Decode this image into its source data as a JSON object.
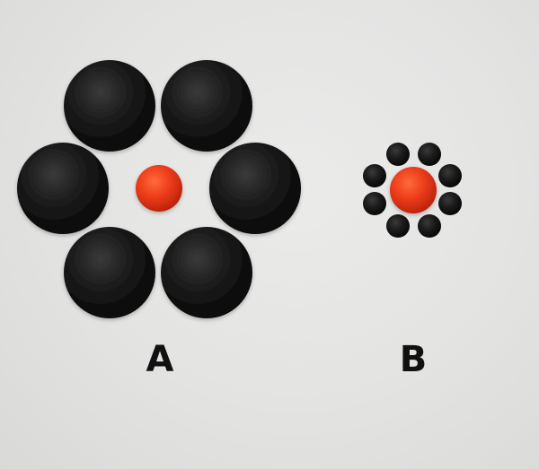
{
  "labels": {
    "a": "A",
    "b": "B"
  },
  "colors": {
    "background": "#e4e4e3",
    "outer_circle": "#111111",
    "center_circle": "#e8381a",
    "label_text": "#111111"
  },
  "figures": [
    {
      "id": "A",
      "outer_circle_count": 6,
      "outer_circle_relative_size": "large",
      "center_circle_relative_size": "same"
    },
    {
      "id": "B",
      "outer_circle_count": 8,
      "outer_circle_relative_size": "small",
      "center_circle_relative_size": "same"
    }
  ]
}
